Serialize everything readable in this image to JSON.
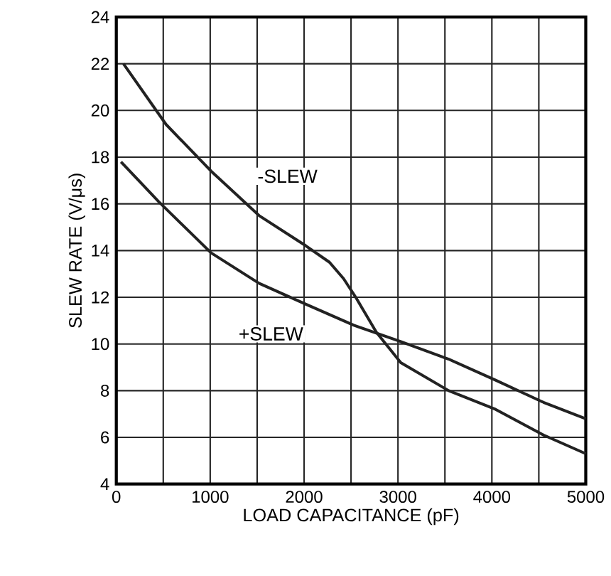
{
  "chart_data": {
    "type": "line",
    "xlabel": "LOAD CAPACITANCE (pF)",
    "ylabel": "SLEW RATE (V/μs)",
    "xlim": [
      0,
      5000
    ],
    "ylim": [
      4,
      24
    ],
    "xticks": [
      0,
      1000,
      2000,
      3000,
      4000,
      5000
    ],
    "yticks": [
      4,
      6,
      8,
      10,
      12,
      14,
      16,
      18,
      20,
      22,
      24
    ],
    "grid": true,
    "marker": "none",
    "line_style": "solid",
    "series": [
      {
        "name": "-SLEW",
        "color": "#222222",
        "x": [
          76,
          530,
          1010,
          1520,
          2020,
          2270,
          2420,
          2550,
          2770,
          3030,
          3540,
          4040,
          4550,
          5000
        ],
        "values": [
          22.0,
          19.4,
          17.4,
          15.5,
          14.2,
          13.5,
          12.8,
          12.0,
          10.5,
          9.2,
          8.0,
          7.2,
          6.1,
          5.3
        ]
      },
      {
        "name": "+SLEW",
        "color": "#222222",
        "x": [
          50,
          450,
          1010,
          1520,
          2020,
          2530,
          3030,
          3540,
          4040,
          4550,
          5000
        ],
        "values": [
          17.8,
          16.1,
          13.9,
          12.6,
          11.7,
          10.8,
          10.1,
          9.35,
          8.45,
          7.5,
          6.8
        ]
      }
    ]
  }
}
